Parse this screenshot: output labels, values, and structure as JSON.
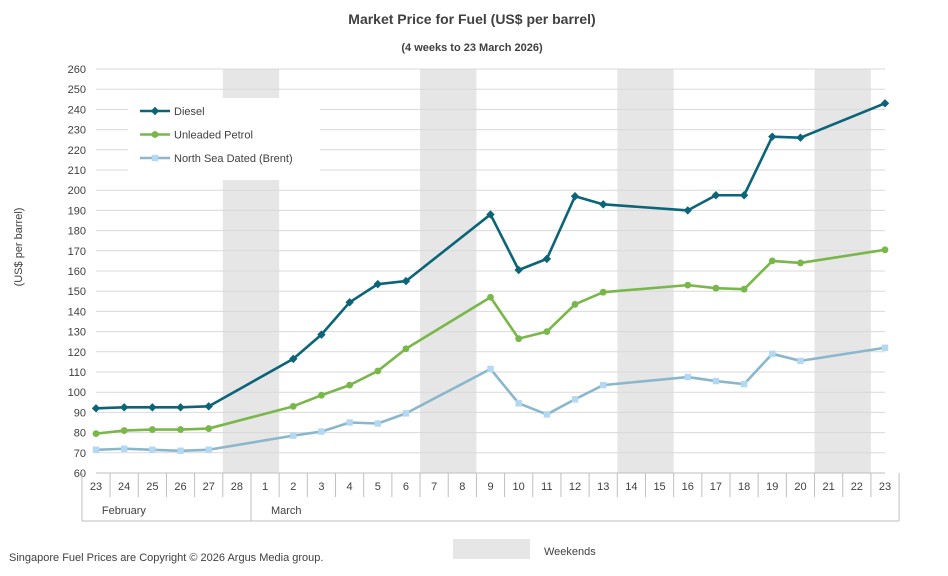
{
  "chart_data": {
    "type": "line",
    "title": "Market Price for Fuel (US$ per barrel)",
    "subtitle": "(4 weeks to 23 March 2026)",
    "ylabel": "(US$ per barrel)",
    "xlabel": "",
    "ylim": [
      60,
      260
    ],
    "ytick_step": 10,
    "grid": true,
    "legend_position": "top-left",
    "x": [
      "23",
      "24",
      "25",
      "26",
      "27",
      "28",
      "1",
      "2",
      "3",
      "4",
      "5",
      "6",
      "7",
      "8",
      "9",
      "10",
      "11",
      "12",
      "13",
      "14",
      "15",
      "16",
      "17",
      "18",
      "19",
      "20",
      "21",
      "22",
      "23"
    ],
    "month_labels": [
      {
        "label": "February",
        "start_index": 0
      },
      {
        "label": "March",
        "start_index": 6
      }
    ],
    "weekend_bands": [
      [
        5,
        6
      ],
      [
        12,
        13
      ],
      [
        19,
        20
      ],
      [
        26,
        27
      ]
    ],
    "series": [
      {
        "name": "Diesel",
        "color": "#0b6477",
        "marker": "diamond",
        "values": [
          92,
          92.5,
          92.5,
          92.5,
          93,
          null,
          null,
          116.5,
          128.5,
          144.5,
          153.5,
          155,
          null,
          null,
          188,
          160.5,
          166,
          197,
          193,
          null,
          null,
          190,
          197.5,
          197.5,
          226.5,
          226,
          null,
          null,
          243
        ]
      },
      {
        "name": "Unleaded Petrol",
        "color": "#79b74a",
        "marker": "circle",
        "values": [
          79.5,
          81,
          81.5,
          81.5,
          82,
          null,
          null,
          93,
          98.5,
          103.5,
          110.5,
          121.5,
          null,
          null,
          147,
          126.5,
          130,
          143.5,
          149.5,
          null,
          null,
          153,
          151.5,
          151,
          165,
          164,
          null,
          null,
          170.5
        ]
      },
      {
        "name": "North Sea Dated (Brent)",
        "color": "#8ab7cc",
        "marker": "square",
        "marker_color": "#b3d8f2",
        "values": [
          71.5,
          72,
          71.5,
          71,
          71.5,
          null,
          null,
          78.5,
          80.5,
          85,
          84.5,
          89.5,
          null,
          null,
          111.5,
          94.5,
          89,
          96.5,
          103.5,
          null,
          null,
          107.5,
          105.5,
          104,
          119,
          115.5,
          null,
          null,
          122
        ]
      }
    ],
    "weekends_label": "Weekends",
    "weekend_color": "#e6e6e6"
  },
  "footer": {
    "copyright": "Singapore Fuel Prices are Copyright © 2026 Argus Media group."
  }
}
